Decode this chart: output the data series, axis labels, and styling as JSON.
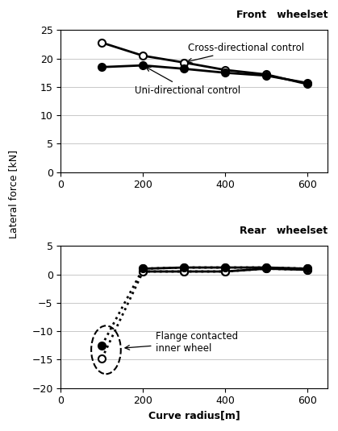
{
  "front_cross_x": [
    100,
    200,
    300,
    400,
    500,
    600
  ],
  "front_cross_y": [
    22.8,
    20.5,
    19.3,
    18.0,
    17.2,
    15.5
  ],
  "front_uni_x": [
    100,
    200,
    300,
    400,
    500,
    600
  ],
  "front_uni_y": [
    18.5,
    18.8,
    18.2,
    17.5,
    17.0,
    15.7
  ],
  "rear_cross_x": [
    100,
    200,
    300,
    400,
    500,
    600
  ],
  "rear_cross_y": [
    -14.8,
    0.5,
    0.5,
    0.5,
    1.0,
    0.8
  ],
  "rear_uni_x": [
    100,
    200,
    300,
    400,
    500,
    600
  ],
  "rear_uni_y": [
    -12.5,
    1.0,
    1.2,
    1.2,
    1.2,
    1.0
  ],
  "front_title": "Front   wheelset",
  "rear_title": "Rear   wheelset",
  "cross_label": "Cross-directional control",
  "uni_label": "Uni-directional control",
  "flange_label1": "Flange contacted",
  "flange_label2": "inner wheel",
  "front_ylim": [
    0,
    25
  ],
  "rear_ylim": [
    -20,
    5
  ],
  "xlim": [
    0,
    650
  ],
  "front_yticks": [
    0,
    5,
    10,
    15,
    20,
    25
  ],
  "rear_yticks": [
    -20,
    -15,
    -10,
    -5,
    0,
    5
  ],
  "xticks": [
    0,
    200,
    400,
    600
  ],
  "xlabel": "Curve radius[m]",
  "ylabel": "Lateral force [kN]"
}
